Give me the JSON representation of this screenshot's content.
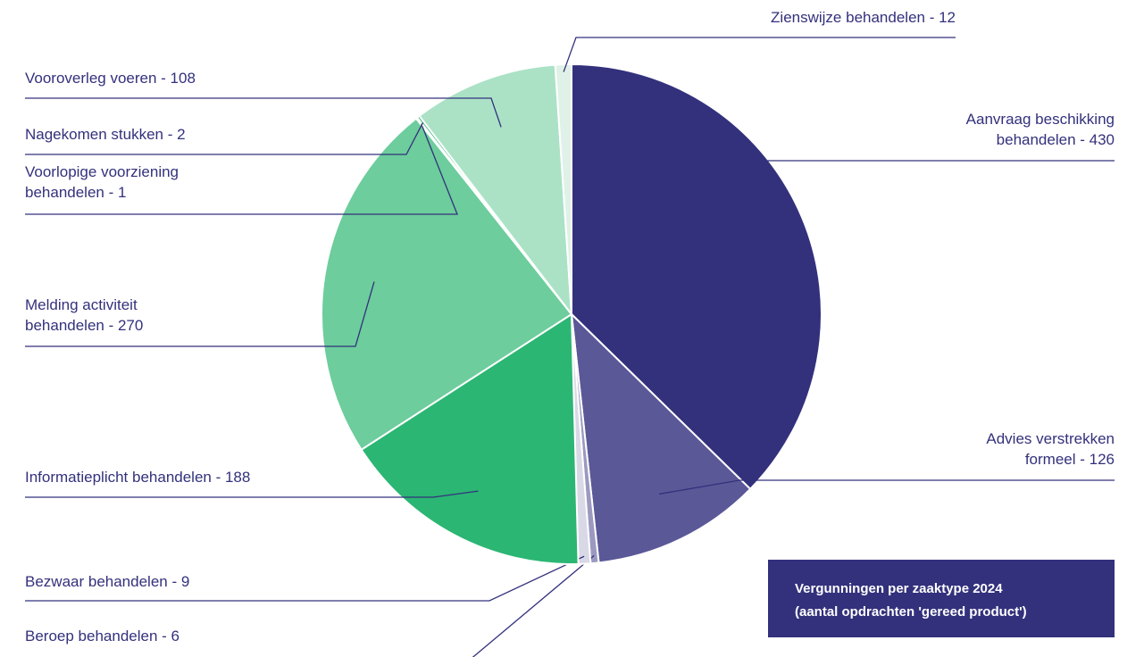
{
  "chart_data": {
    "type": "pie",
    "title": "Vergunningen per zaaktype 2024",
    "subtitle": "(aantal opdrachten 'gereed product')",
    "values": [
      430,
      126,
      6,
      9,
      188,
      270,
      1,
      2,
      108,
      12
    ],
    "value_labels": [
      [
        "Aanvraag beschikking",
        "behandelen - 430"
      ],
      [
        "Advies verstrekken",
        "formeel - 126"
      ],
      [
        "Beroep behandelen - 6"
      ],
      [
        "Bezwaar behandelen - 9"
      ],
      [
        "Informatieplicht behandelen - 188"
      ],
      [
        "Melding activiteit",
        "behandelen - 270"
      ],
      [
        "Voorlopige voorziening",
        "behandelen - 1"
      ],
      [
        "Nagekomen stukken - 2"
      ],
      [
        "Vooroverleg voeren - 108"
      ],
      [
        "Zienswijze behandelen - 12"
      ]
    ],
    "colors": [
      "#33317c",
      "#5b5898",
      "#9b99c0",
      "#d9d8e6",
      "#2bb673",
      "#6dcd9c",
      "#2bb673",
      "#3cbb7a",
      "#abe2c6",
      "#e0f1e8"
    ]
  }
}
